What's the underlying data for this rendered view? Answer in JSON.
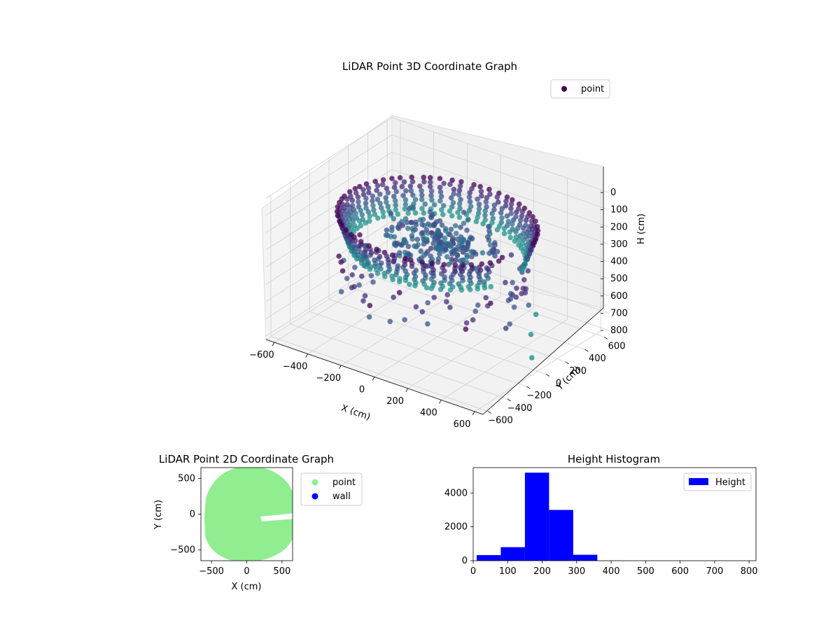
{
  "chart_data": [
    {
      "type": "scatter",
      "projection": "3d",
      "title": "LiDAR Point 3D Coordinate Graph",
      "xlabel": "X (cm)",
      "ylabel": "Y (cm)",
      "zlabel": "H (cm)",
      "xlim": [
        -650,
        650
      ],
      "ylim": [
        -650,
        650
      ],
      "zlim": [
        0,
        820
      ],
      "z_inverted": true,
      "colormap": "viridis",
      "x_ticks": [
        "-600",
        "-400",
        "-200",
        "0",
        "200",
        "400",
        "600"
      ],
      "y_ticks": [
        "-600",
        "-400",
        "-200",
        "0",
        "200",
        "400",
        "600"
      ],
      "z_ticks": [
        "0",
        "100",
        "200",
        "300",
        "400",
        "500",
        "600",
        "700",
        "800"
      ],
      "legend": {
        "position": "top-right",
        "entries": [
          {
            "label": "point",
            "color": "#440154"
          }
        ]
      },
      "grid": true,
      "series": [
        {
          "name": "point",
          "description_points": [
            {
              "x": 560,
              "y": 0,
              "h": 620
            },
            {
              "x": 600,
              "y": -60,
              "h": 720
            },
            {
              "x": 520,
              "y": 120,
              "h": 560
            }
          ]
        }
      ]
    },
    {
      "type": "scatter",
      "title": "LiDAR Point 2D Coordinate Graph",
      "xlabel": "X (cm)",
      "ylabel": "Y (cm)",
      "xlim": [
        -650,
        650
      ],
      "ylim": [
        -650,
        650
      ],
      "x_ticks": [
        "−500",
        "0",
        "500"
      ],
      "y_ticks": [
        "−500",
        "0",
        "500"
      ],
      "legend": {
        "position": "outside-right",
        "entries": [
          {
            "label": "point",
            "color": "#90ee90"
          },
          {
            "label": "wall",
            "color": "#0000ff"
          }
        ]
      },
      "series": [
        {
          "name": "point",
          "color": "#90ee90"
        },
        {
          "name": "wall",
          "color": "#0000ff"
        }
      ]
    },
    {
      "type": "bar",
      "title": "Height Histogram",
      "xlabel": "",
      "ylabel": "",
      "xlim": [
        0,
        820
      ],
      "ylim": [
        0,
        5500
      ],
      "x_ticks": [
        "0",
        "100",
        "200",
        "300",
        "400",
        "500",
        "600",
        "700",
        "800"
      ],
      "y_ticks": [
        "0",
        "2000",
        "4000"
      ],
      "legend": {
        "position": "top-right",
        "entries": [
          {
            "label": "Height",
            "color": "#0000ff"
          }
        ]
      },
      "bins": [
        {
          "from": 10,
          "to": 80,
          "count": 330
        },
        {
          "from": 80,
          "to": 150,
          "count": 800
        },
        {
          "from": 150,
          "to": 220,
          "count": 5200
        },
        {
          "from": 220,
          "to": 290,
          "count": 3000
        },
        {
          "from": 290,
          "to": 360,
          "count": 350
        },
        {
          "from": 360,
          "to": 430,
          "count": 5
        },
        {
          "from": 430,
          "to": 500,
          "count": 3
        },
        {
          "from": 500,
          "to": 570,
          "count": 2
        },
        {
          "from": 570,
          "to": 640,
          "count": 1
        },
        {
          "from": 640,
          "to": 710,
          "count": 1
        },
        {
          "from": 710,
          "to": 790,
          "count": 1
        }
      ],
      "series": [
        {
          "name": "Height",
          "color": "#0000ff"
        }
      ]
    }
  ]
}
